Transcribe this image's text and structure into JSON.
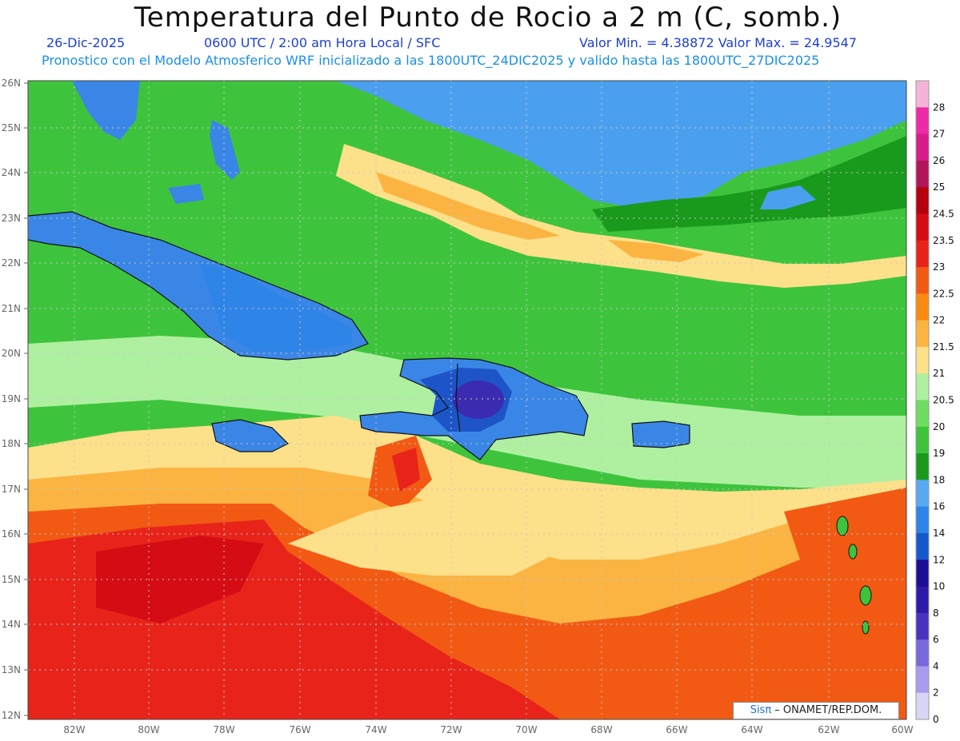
{
  "header": {
    "title": "Temperatura del Punto de Rocio a 2 m (C, somb.)",
    "date": "26-Dic-2025",
    "time": "0600 UTC / 2:00 am Hora Local / SFC",
    "minmax": "Valor Min. = 4.38872  Valor Max. = 24.9547",
    "model_line": "Pronostico con el Modelo Atmosferico WRF inicializado a las 1800UTC_24DIC2025 y valido hasta las  1800UTC_27DIC2025"
  },
  "map": {
    "lat_labels": [
      "26N",
      "25N",
      "24N",
      "23N",
      "22N",
      "21N",
      "20N",
      "19N",
      "18N",
      "17N",
      "16N",
      "15N",
      "14N",
      "13N",
      "12N"
    ],
    "lon_labels": [
      "82W",
      "80W",
      "78W",
      "76W",
      "74W",
      "72W",
      "70W",
      "68W",
      "66W",
      "64W",
      "62W",
      "60W"
    ]
  },
  "legend": {
    "labels": [
      "28",
      "27",
      "26",
      "25",
      "24.5",
      "23.5",
      "23",
      "22.5",
      "22",
      "21.5",
      "21",
      "20.5",
      "20",
      "19",
      "18",
      "16",
      "14",
      "12",
      "10",
      "8",
      "6",
      "4",
      "2",
      "0"
    ],
    "colors": [
      "#f5b3d8",
      "#ee2aa6",
      "#d81c8c",
      "#b2155a",
      "#b5000d",
      "#d50c14",
      "#e8241a",
      "#f25a14",
      "#fb8a12",
      "#fbb442",
      "#fde08a",
      "#aef0a0",
      "#6fdc62",
      "#3ec43c",
      "#1a9a1c",
      "#5aa8f2",
      "#2f84e8",
      "#1659cc",
      "#1d0d95",
      "#2d1aa8",
      "#4a32c0",
      "#7768dc",
      "#a99cef",
      "#d8d6f5"
    ]
  },
  "credit": {
    "logo": "Sisπ",
    "text": " – ONAMET/REP.DOM."
  }
}
